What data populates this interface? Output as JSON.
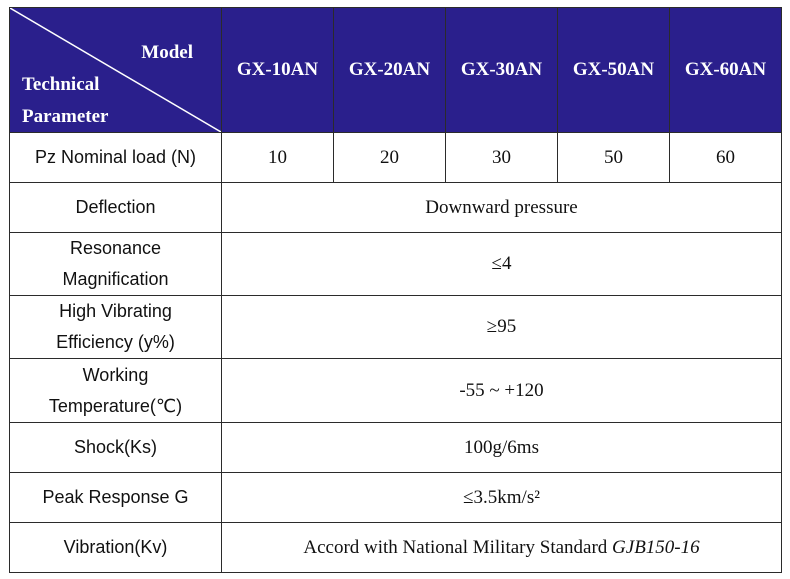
{
  "header": {
    "corner_model": "Model",
    "corner_technical": "Technical",
    "corner_parameter": "Parameter",
    "models": [
      "GX-10AN",
      "GX-20AN",
      "GX-30AN",
      "GX-50AN",
      "GX-60AN"
    ]
  },
  "rows": {
    "nominal_load": {
      "label": "Pz Nominal load (N)",
      "values": [
        "10",
        "20",
        "30",
        "50",
        "60"
      ]
    },
    "deflection": {
      "label": "Deflection",
      "value": "Downward pressure"
    },
    "resonance": {
      "label_line1": "Resonance",
      "label_line2": "Magnification",
      "value": "≤4"
    },
    "efficiency": {
      "label_line1": "High Vibrating",
      "label_line2": "Efficiency (y%)",
      "value": "≥95"
    },
    "temperature": {
      "label_line1": "Working",
      "label_line2": "Temperature(℃)",
      "value": "-55 ~ +120"
    },
    "shock": {
      "label": "Shock(Ks)",
      "value": "100g/6ms"
    },
    "peak": {
      "label": "Peak Response G",
      "value": "≤3.5km/s²"
    },
    "vibration": {
      "label": "Vibration(Kv)",
      "value_prefix": "Accord with National Military Standard ",
      "value_standard": "GJB150-16"
    }
  },
  "colors": {
    "header_bg": "#2a1f8c",
    "header_text": "#ffffff",
    "border": "#2b2b2b"
  }
}
